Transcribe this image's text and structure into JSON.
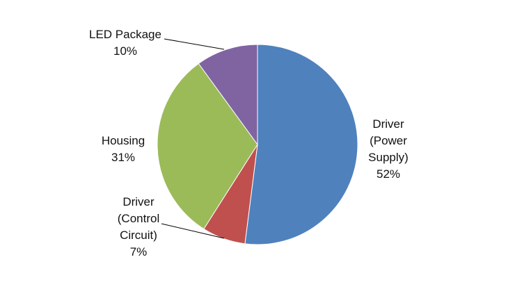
{
  "chart_data": {
    "type": "pie",
    "slices": [
      {
        "label_lines": [
          "Driver",
          "(Power",
          "Supply)"
        ],
        "percent_label": "52%",
        "value": 52,
        "color": "#4f81bd"
      },
      {
        "label_lines": [
          "Driver",
          "(Control",
          "Circuit)"
        ],
        "percent_label": "7%",
        "value": 7,
        "color": "#c0504d"
      },
      {
        "label_lines": [
          "Housing"
        ],
        "percent_label": "31%",
        "value": 31,
        "color": "#9bbb59"
      },
      {
        "label_lines": [
          "LED Package"
        ],
        "percent_label": "10%",
        "value": 10,
        "color": "#8064a2"
      }
    ],
    "start": "12 o'clock",
    "direction": "clockwise",
    "legend": "none"
  }
}
